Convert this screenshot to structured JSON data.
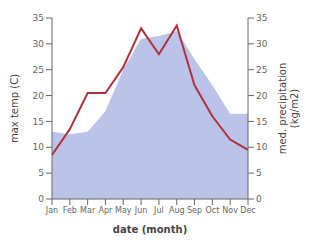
{
  "chart_data": {
    "type": "line",
    "xlabel": "date (month)",
    "ylabel": "max temp (C)",
    "y2label": "med. precipitation\n(kg/m2)",
    "categories": [
      "Jan",
      "Feb",
      "Mar",
      "Apr",
      "May",
      "Jun",
      "Jul",
      "Aug",
      "Sep",
      "Oct",
      "Nov",
      "Dec"
    ],
    "series": [
      {
        "type": "area",
        "axis": "y2",
        "color": "#bbc4e8",
        "values": [
          13.0,
          12.5,
          13.0,
          17.0,
          25.0,
          31.0,
          31.5,
          32.5,
          27.0,
          22.0,
          16.5,
          16.5
        ]
      },
      {
        "type": "line",
        "axis": "y",
        "color": "#b03040",
        "values": [
          8.5,
          13.5,
          20.5,
          20.5,
          25.5,
          33.0,
          28.0,
          33.5,
          22.0,
          16.0,
          11.5,
          9.5
        ]
      }
    ],
    "ylim": [
      0,
      35
    ],
    "yticks": [
      0,
      5,
      10,
      15,
      20,
      25,
      30,
      35
    ],
    "y2lim": [
      0,
      35
    ],
    "y2ticks": [
      0,
      5,
      10,
      15,
      20,
      25,
      30,
      35
    ],
    "grid": false
  }
}
